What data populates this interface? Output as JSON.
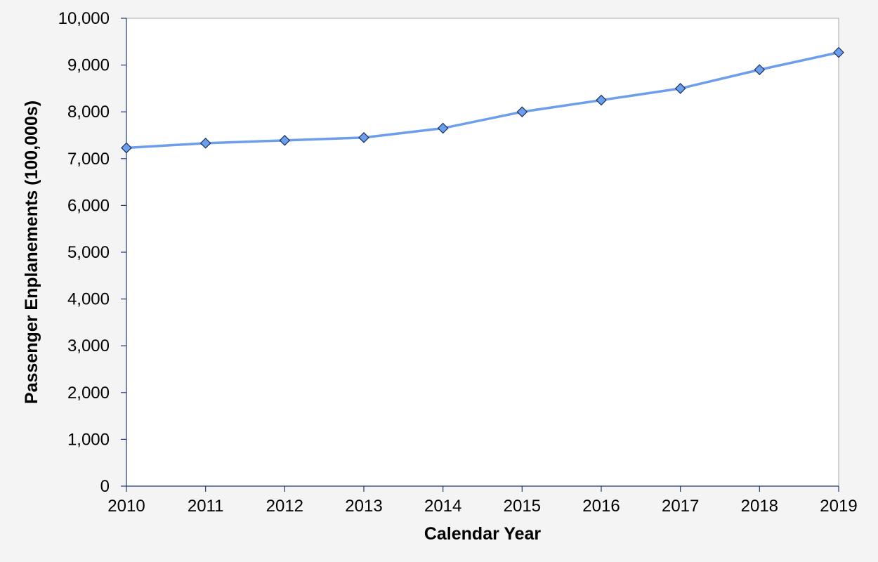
{
  "chart_data": {
    "type": "line",
    "title": "",
    "xlabel": "Calendar Year",
    "ylabel": "Passenger Enplanements (100,000s)",
    "x": [
      2010,
      2011,
      2012,
      2013,
      2014,
      2015,
      2016,
      2017,
      2018,
      2019
    ],
    "x_tick_labels": [
      "2010",
      "2011",
      "2012",
      "2013",
      "2014",
      "2015",
      "2016",
      "2017",
      "2018",
      "2019"
    ],
    "y_tick_labels": [
      "0",
      "1,000",
      "2,000",
      "3,000",
      "4,000",
      "5,000",
      "6,000",
      "7,000",
      "8,000",
      "9,000",
      "10,000"
    ],
    "y_ticks": [
      0,
      1000,
      2000,
      3000,
      4000,
      5000,
      6000,
      7000,
      8000,
      9000,
      10000
    ],
    "ylim": [
      0,
      10000
    ],
    "xlim": [
      2010,
      2019
    ],
    "grid": false,
    "legend": "none",
    "series": [
      {
        "values": [
          7230,
          7330,
          7390,
          7450,
          7650,
          8000,
          8250,
          8500,
          8900,
          9270
        ],
        "color": "#6d9eeb",
        "marker": "diamond",
        "marker_color": "#6d9eeb"
      }
    ],
    "colors": {
      "plot_background": "#ffffff",
      "page_background": "#f4f4f4",
      "axis_line": "#1f3a6e",
      "frame": "#a6a6a6"
    }
  }
}
